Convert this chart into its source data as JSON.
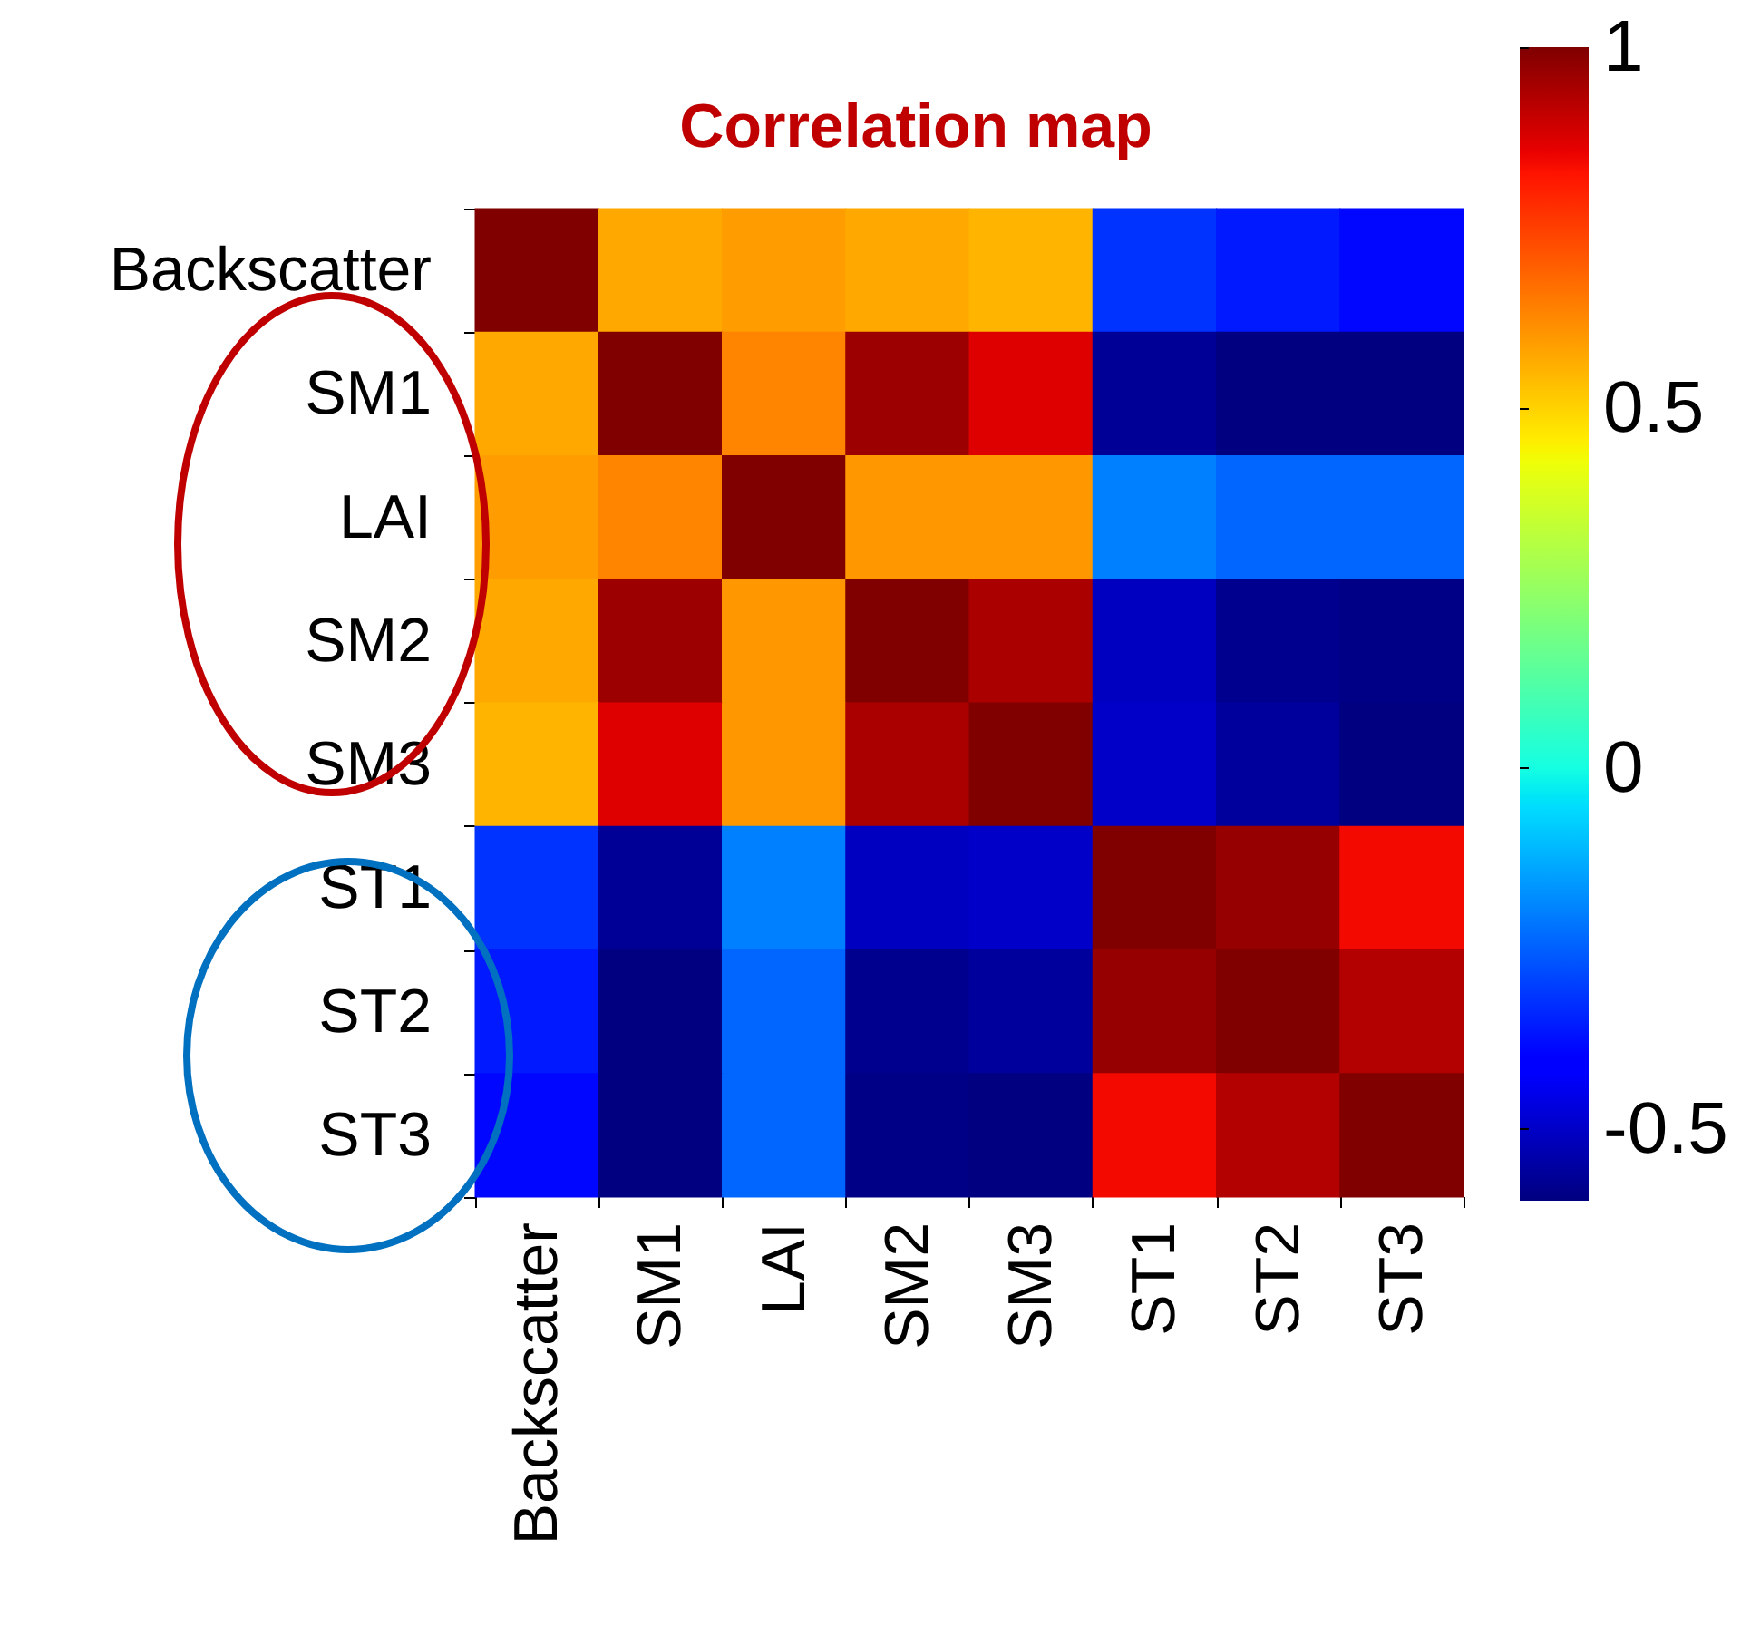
{
  "chart_data": {
    "type": "heatmap",
    "title": "Correlation map",
    "categories": [
      "Backscatter",
      "SM1",
      "LAI",
      "SM2",
      "SM3",
      "ST1",
      "ST2",
      "ST3"
    ],
    "y_categories": [
      "Backscatter",
      "SM1",
      "LAI",
      "SM2",
      "SM3",
      "ST1",
      "ST2",
      "ST3"
    ],
    "cells": [
      [
        1,
        0.57,
        0.59,
        0.57,
        0.55,
        -0.32,
        -0.36,
        -0.39
      ],
      [
        0.57,
        1,
        0.63,
        0.96,
        0.87,
        -0.57,
        -0.6,
        -0.6
      ],
      [
        0.59,
        0.63,
        1,
        0.6,
        0.6,
        -0.2,
        -0.24,
        -0.24
      ],
      [
        0.57,
        0.96,
        0.6,
        1,
        0.94,
        -0.51,
        -0.58,
        -0.59
      ],
      [
        0.55,
        0.87,
        0.6,
        0.94,
        1,
        -0.5,
        -0.56,
        -0.6
      ],
      [
        -0.32,
        -0.57,
        -0.2,
        -0.51,
        -0.5,
        1,
        0.97,
        0.84
      ],
      [
        -0.36,
        -0.6,
        -0.24,
        -0.58,
        -0.56,
        0.97,
        1,
        0.93
      ],
      [
        -0.39,
        -0.6,
        -0.24,
        -0.59,
        -0.6,
        0.84,
        0.93,
        1
      ]
    ],
    "clim": [
      -0.6,
      1
    ],
    "cticks": [
      -0.5,
      0,
      0.5,
      1
    ]
  }
}
